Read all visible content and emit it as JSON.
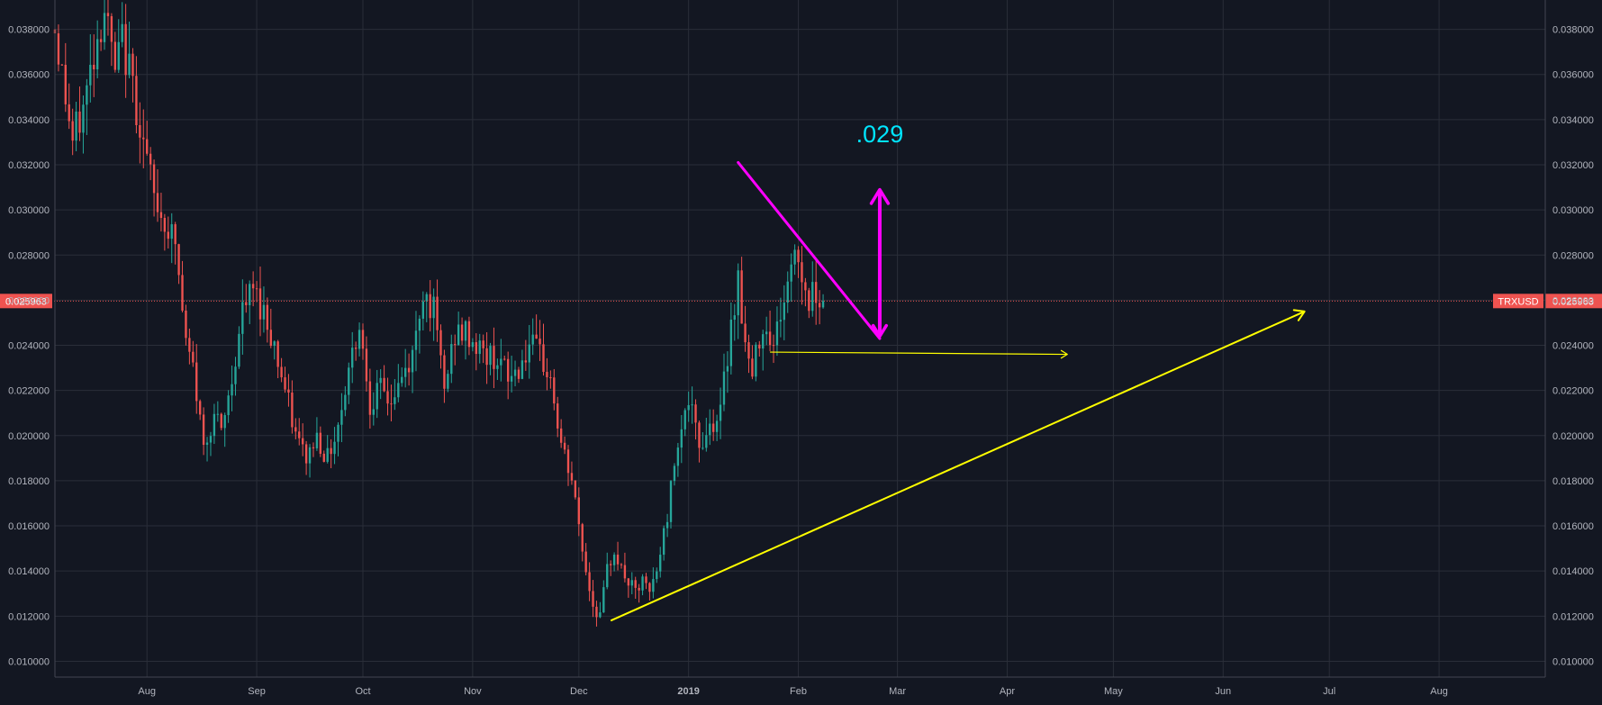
{
  "colors": {
    "background": "#131722",
    "grid": "#2a2e39",
    "axis_text": "#b2b5be",
    "up": "#26a69a",
    "down": "#ef5350",
    "price_line": "#ef5350",
    "annotation_magenta": "#ff00ff",
    "annotation_yellow": "#ffff00",
    "annotation_cyan": "#00e5ff"
  },
  "chart_data": {
    "type": "candlestick",
    "symbol": "TRXUSD",
    "last_price": 0.025963,
    "last_price_label": "0.025963",
    "x_axis": {
      "range": [
        "2018-07-06",
        "2019-08-31"
      ],
      "ticks": [
        {
          "date": "2018-08-01",
          "label": "Aug"
        },
        {
          "date": "2018-09-01",
          "label": "Sep"
        },
        {
          "date": "2018-10-01",
          "label": "Oct"
        },
        {
          "date": "2018-11-01",
          "label": "Nov"
        },
        {
          "date": "2018-12-01",
          "label": "Dec"
        },
        {
          "date": "2019-01-01",
          "label": "2019"
        },
        {
          "date": "2019-02-01",
          "label": "Feb"
        },
        {
          "date": "2019-03-01",
          "label": "Mar"
        },
        {
          "date": "2019-04-01",
          "label": "Apr"
        },
        {
          "date": "2019-05-01",
          "label": "May"
        },
        {
          "date": "2019-06-01",
          "label": "Jun"
        },
        {
          "date": "2019-07-01",
          "label": "Jul"
        },
        {
          "date": "2019-08-01",
          "label": "Aug"
        }
      ]
    },
    "y_axis": {
      "range": [
        0.0093,
        0.0393
      ],
      "ticks": [
        "0.010000",
        "0.012000",
        "0.014000",
        "0.016000",
        "0.018000",
        "0.020000",
        "0.022000",
        "0.024000",
        "0.026000",
        "0.028000",
        "0.030000",
        "0.032000",
        "0.034000",
        "0.036000",
        "0.038000"
      ],
      "grid": true
    },
    "price_path": [
      [
        "2018-07-06",
        0.038
      ],
      [
        "2018-07-09",
        0.035
      ],
      [
        "2018-07-11",
        0.033
      ],
      [
        "2018-07-14",
        0.0345
      ],
      [
        "2018-07-17",
        0.037
      ],
      [
        "2018-07-20",
        0.039
      ],
      [
        "2018-07-23",
        0.036
      ],
      [
        "2018-07-25",
        0.0375
      ],
      [
        "2018-07-28",
        0.0355
      ],
      [
        "2018-07-31",
        0.033
      ],
      [
        "2018-08-03",
        0.0305
      ],
      [
        "2018-08-06",
        0.0295
      ],
      [
        "2018-08-09",
        0.0285
      ],
      [
        "2018-08-12",
        0.024
      ],
      [
        "2018-08-14",
        0.023
      ],
      [
        "2018-08-17",
        0.0195
      ],
      [
        "2018-08-20",
        0.021
      ],
      [
        "2018-08-22",
        0.02
      ],
      [
        "2018-08-25",
        0.0225
      ],
      [
        "2018-08-28",
        0.0255
      ],
      [
        "2018-08-31",
        0.0265
      ],
      [
        "2018-09-03",
        0.0255
      ],
      [
        "2018-09-06",
        0.024
      ],
      [
        "2018-09-09",
        0.022
      ],
      [
        "2018-09-12",
        0.02
      ],
      [
        "2018-09-15",
        0.019
      ],
      [
        "2018-09-18",
        0.02
      ],
      [
        "2018-09-21",
        0.019
      ],
      [
        "2018-09-24",
        0.0205
      ],
      [
        "2018-09-27",
        0.023
      ],
      [
        "2018-09-30",
        0.025
      ],
      [
        "2018-10-03",
        0.0215
      ],
      [
        "2018-10-06",
        0.022
      ],
      [
        "2018-10-09",
        0.0215
      ],
      [
        "2018-10-12",
        0.0225
      ],
      [
        "2018-10-15",
        0.0235
      ],
      [
        "2018-10-18",
        0.0265
      ],
      [
        "2018-10-21",
        0.0255
      ],
      [
        "2018-10-24",
        0.022
      ],
      [
        "2018-10-27",
        0.0245
      ],
      [
        "2018-10-30",
        0.0245
      ],
      [
        "2018-11-02",
        0.024
      ],
      [
        "2018-11-05",
        0.0235
      ],
      [
        "2018-11-08",
        0.0235
      ],
      [
        "2018-11-11",
        0.0225
      ],
      [
        "2018-11-14",
        0.023
      ],
      [
        "2018-11-17",
        0.024
      ],
      [
        "2018-11-20",
        0.0235
      ],
      [
        "2018-11-23",
        0.0225
      ],
      [
        "2018-11-26",
        0.0195
      ],
      [
        "2018-11-29",
        0.018
      ],
      [
        "2018-12-01",
        0.016
      ],
      [
        "2018-12-03",
        0.014
      ],
      [
        "2018-12-05",
        0.0125
      ],
      [
        "2018-12-07",
        0.012
      ],
      [
        "2018-12-09",
        0.014
      ],
      [
        "2018-12-11",
        0.015
      ],
      [
        "2018-12-13",
        0.014
      ],
      [
        "2018-12-15",
        0.0135
      ],
      [
        "2018-12-17",
        0.013
      ],
      [
        "2018-12-19",
        0.0135
      ],
      [
        "2018-12-21",
        0.013
      ],
      [
        "2018-12-23",
        0.014
      ],
      [
        "2018-12-26",
        0.0165
      ],
      [
        "2018-12-29",
        0.02
      ],
      [
        "2019-01-01",
        0.0215
      ],
      [
        "2019-01-04",
        0.0195
      ],
      [
        "2019-01-07",
        0.0205
      ],
      [
        "2019-01-10",
        0.021
      ],
      [
        "2019-01-13",
        0.025
      ],
      [
        "2019-01-15",
        0.027
      ],
      [
        "2019-01-17",
        0.024
      ],
      [
        "2019-01-19",
        0.0225
      ],
      [
        "2019-01-21",
        0.0245
      ],
      [
        "2019-01-23",
        0.025
      ],
      [
        "2019-01-25",
        0.024
      ],
      [
        "2019-01-27",
        0.0255
      ],
      [
        "2019-01-29",
        0.0265
      ],
      [
        "2019-01-31",
        0.0285
      ],
      [
        "2019-02-02",
        0.027
      ],
      [
        "2019-02-04",
        0.026
      ],
      [
        "2019-02-06",
        0.0265
      ],
      [
        "2019-02-08",
        0.026
      ]
    ],
    "annotations": [
      {
        "type": "trendline",
        "color": "magenta",
        "from": [
          "2019-01-15",
          0.0321
        ],
        "to": [
          "2019-02-24",
          0.0243
        ]
      },
      {
        "type": "double-arrow",
        "color": "magenta",
        "from": [
          "2019-02-24",
          0.0244
        ],
        "to": [
          "2019-02-24",
          0.0309
        ]
      },
      {
        "type": "text",
        "color": "cyan",
        "text": ".029",
        "at": [
          "2019-02-24",
          0.033
        ]
      },
      {
        "type": "arrow",
        "color": "yellow",
        "from": [
          "2018-12-10",
          0.0118
        ],
        "to": [
          "2019-06-24",
          0.0255
        ]
      },
      {
        "type": "arrow",
        "color": "yellow",
        "from": [
          "2019-01-24",
          0.0237
        ],
        "to": [
          "2019-04-18",
          0.0236
        ]
      }
    ]
  }
}
